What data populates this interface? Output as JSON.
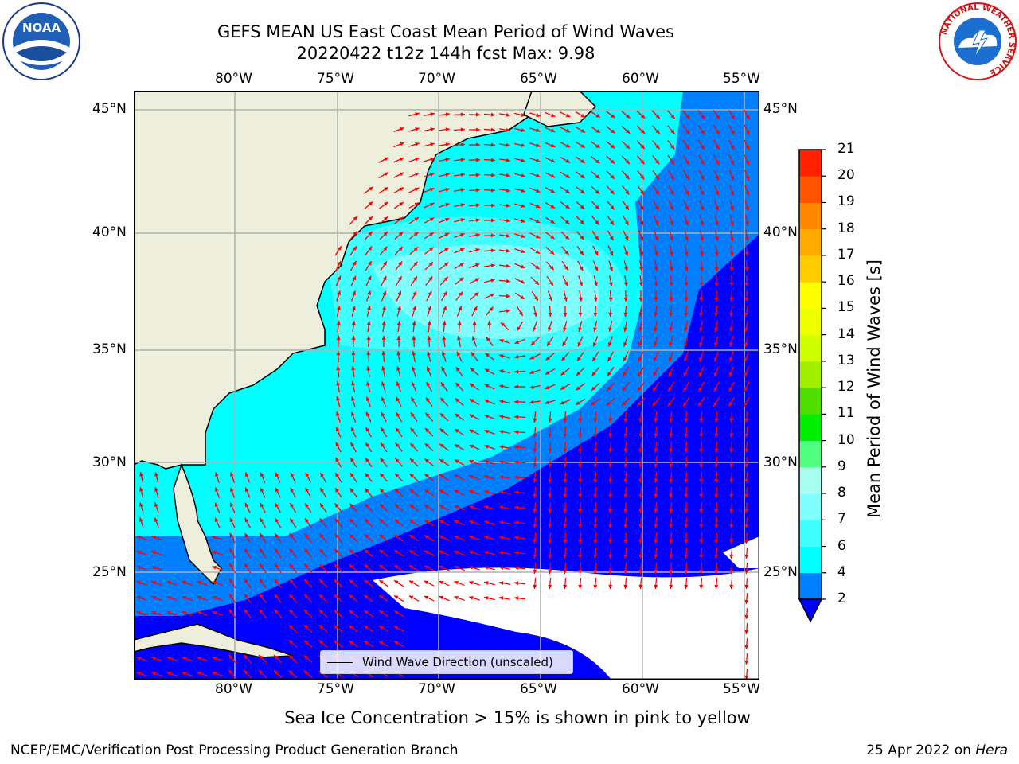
{
  "title": {
    "line1": "GEFS MEAN US East Coast Mean Period of Wind Waves",
    "line2": "20220422 t12z 144h fcst   Max: 9.98"
  },
  "logos": {
    "noaa": "NOAA",
    "nws_ring": "NATIONAL WEATHER SERVICE"
  },
  "map": {
    "lon_labels": [
      "80°W",
      "75°W",
      "70°W",
      "65°W",
      "60°W",
      "55°W"
    ],
    "lat_labels": [
      "45°N",
      "40°N",
      "35°N",
      "30°N",
      "25°N"
    ],
    "legend": "Wind Wave Direction (unscaled)",
    "colors": {
      "land": "#eeeedd",
      "coast": "#000000",
      "arrow": "#ff0000",
      "grid": "#b0b0b0",
      "no_data": "#ffffff"
    }
  },
  "colorbar": {
    "label": "Mean Period of Wind Waves [s]",
    "ticks": [
      "2",
      "4",
      "6",
      "7",
      "8",
      "9",
      "10",
      "11",
      "12",
      "13",
      "14",
      "15",
      "16",
      "17",
      "18",
      "19",
      "20",
      "21"
    ],
    "colors": [
      "#0000ff",
      "#0080ff",
      "#00ffff",
      "#40ffff",
      "#80ffff",
      "#a8fff0",
      "#50ff80",
      "#00ee00",
      "#50dd00",
      "#a0ee00",
      "#d0ff00",
      "#eeff00",
      "#ffff00",
      "#ffcc00",
      "#ffaa00",
      "#ff8800",
      "#ff5500",
      "#ff2200",
      "#ff0000"
    ],
    "extend": "min"
  },
  "footer": {
    "sea_ice_note": "Sea Ice Concentration > 15% is shown in pink to yellow",
    "branch": "NCEP/EMC/Verification Post Processing Product Generation Branch",
    "date_prefix": "25 Apr 2022 on",
    "machine": "Hera"
  }
}
